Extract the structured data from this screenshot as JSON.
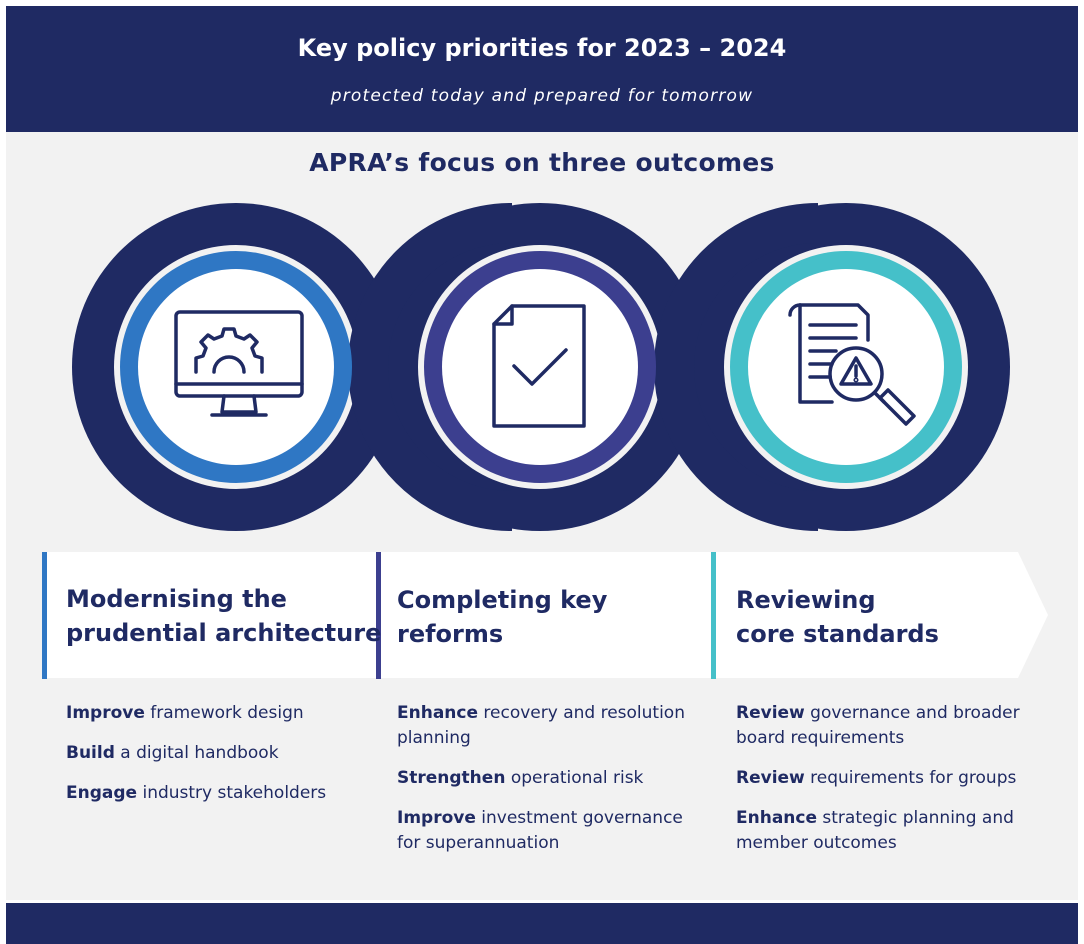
{
  "header": {
    "title": "Key policy priorities for 2023 – 2024",
    "subtitle": "protected today and prepared for tomorrow"
  },
  "focus_heading": "APRA’s focus on three outcomes",
  "colors": {
    "navy": "#1f2a63",
    "blue": "#2f77c4",
    "purple": "#3c3f8f",
    "teal": "#45c0c9"
  },
  "outcomes": [
    {
      "icon": "monitor-gear-icon",
      "accent": "#2f77c4",
      "heading_line1": "Modernising the",
      "heading_line2": "prudential architecture",
      "items": [
        {
          "bold": "Improve",
          "text": " framework design"
        },
        {
          "bold": "Build",
          "text": " a digital handbook"
        },
        {
          "bold": "Engage",
          "text": " industry stakeholders"
        }
      ]
    },
    {
      "icon": "document-check-icon",
      "accent": "#3c3f8f",
      "heading_line1": "Completing key",
      "heading_line2": "reforms",
      "items": [
        {
          "bold": "Enhance",
          "text": " recovery and resolution planning"
        },
        {
          "bold": "Strengthen",
          "text": " operational risk"
        },
        {
          "bold": "Improve",
          "text": " investment governance for superannuation"
        }
      ]
    },
    {
      "icon": "document-magnifier-warning-icon",
      "accent": "#45c0c9",
      "heading_line1": "Reviewing",
      "heading_line2": "core standards",
      "items": [
        {
          "bold": "Review",
          "text": " governance and broader board requirements"
        },
        {
          "bold": "Review",
          "text": " requirements for groups"
        },
        {
          "bold": "Enhance",
          "text": " strategic planning and member outcomes"
        }
      ]
    }
  ]
}
